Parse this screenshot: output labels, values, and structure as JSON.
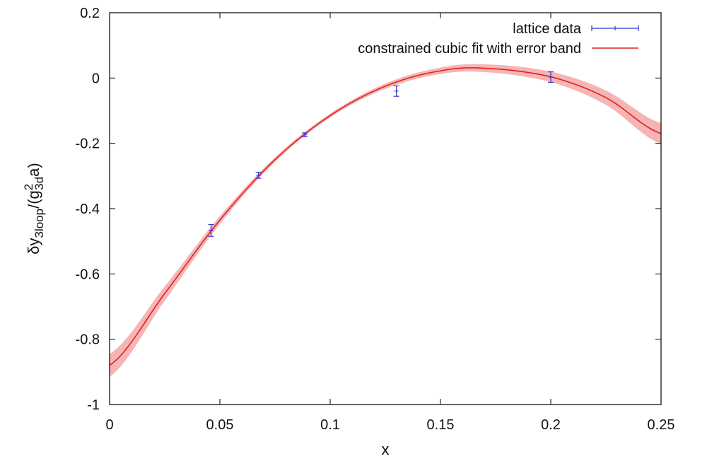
{
  "chart_data": {
    "type": "line",
    "xlabel": "x",
    "ylabel": {
      "prefix": "δy",
      "sub1": "3loop",
      "mid": "/(g",
      "sup": "2",
      "sub2": "3d",
      "suffix": "a)"
    },
    "xlim": [
      0,
      0.25
    ],
    "ylim": [
      -1,
      0.2
    ],
    "xticks": [
      "0",
      "0.05",
      "0.1",
      "0.15",
      "0.2",
      "0.25"
    ],
    "yticks": [
      "0.2",
      "0",
      "-0.2",
      "-0.4",
      "-0.6",
      "-0.8",
      "-1"
    ],
    "grid": false,
    "legend_position": "top-right",
    "series": [
      {
        "name": "lattice data",
        "kind": "errorbars",
        "color": "#3333cc",
        "points": [
          {
            "x": 0.046,
            "y": -0.467,
            "err": 0.018
          },
          {
            "x": 0.0675,
            "y": -0.298,
            "err": 0.009
          },
          {
            "x": 0.0885,
            "y": -0.174,
            "err": 0.006
          },
          {
            "x": 0.13,
            "y": -0.04,
            "err": 0.016
          },
          {
            "x": 0.2,
            "y": 0.003,
            "err": 0.016
          }
        ]
      },
      {
        "name": "constrained cubic fit with error band",
        "kind": "fit",
        "color": "#e02020",
        "band_color": "#f5b5b5",
        "x": [
          0,
          0.025,
          0.05,
          0.075,
          0.1,
          0.125,
          0.15,
          0.17,
          0.2,
          0.225,
          0.25
        ],
        "y": [
          -0.88,
          -0.66,
          -0.435,
          -0.25,
          -0.115,
          -0.025,
          0.022,
          0.03,
          0.004,
          -0.06,
          -0.17
        ],
        "band_halfwidth": [
          0.035,
          0.022,
          0.012,
          0.007,
          0.006,
          0.008,
          0.01,
          0.012,
          0.016,
          0.022,
          0.032
        ]
      }
    ]
  }
}
